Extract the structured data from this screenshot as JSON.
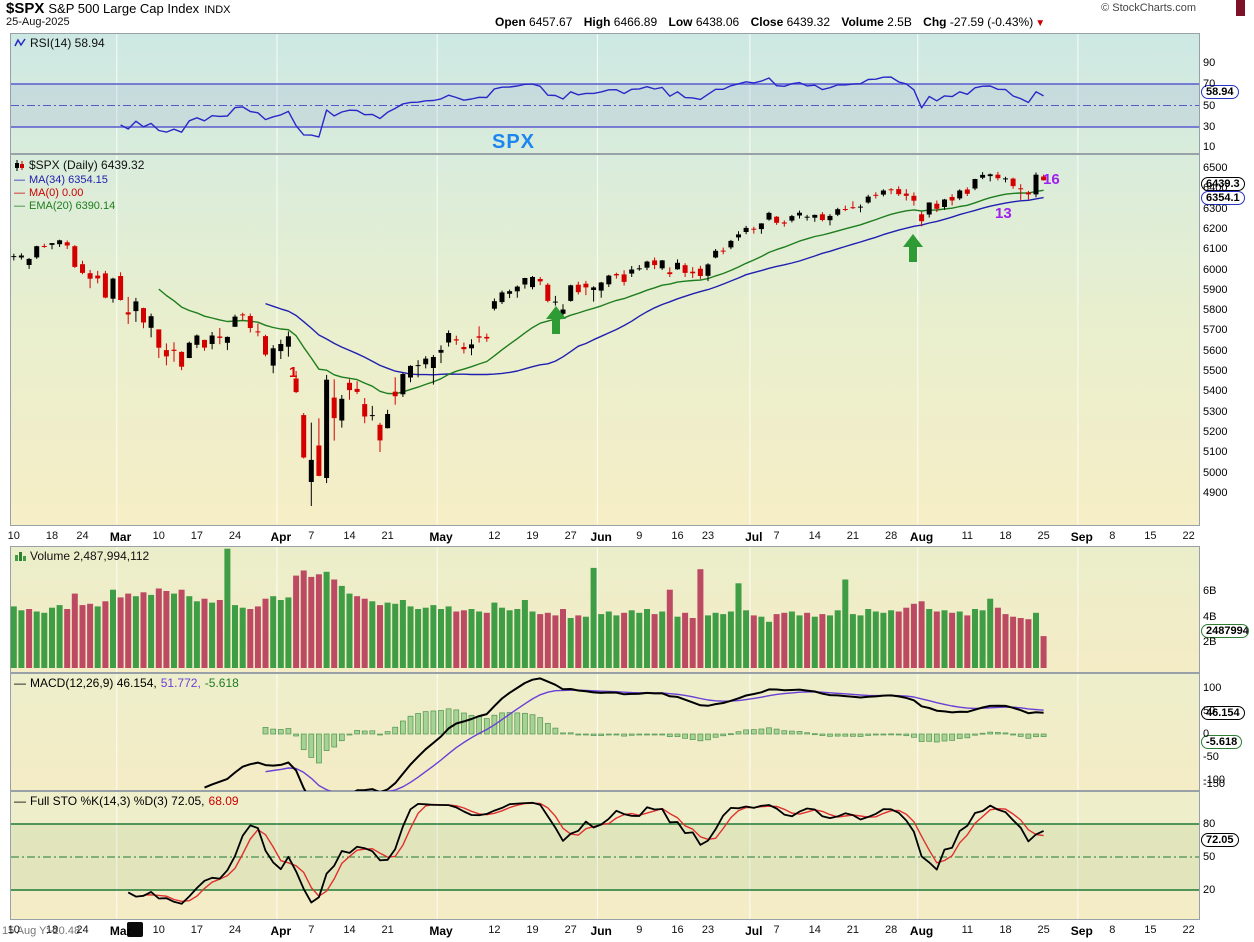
{
  "header": {
    "symbol": "$SPX",
    "name": "S&P 500 Large Cap Index",
    "exchange": "INDX",
    "credit": "© StockCharts.com",
    "date": "25-Aug-2025",
    "quote": {
      "open_label": "Open",
      "open": "6457.67",
      "high_label": "High",
      "high": "6466.89",
      "low_label": "Low",
      "low": "6438.06",
      "close_label": "Close",
      "close": "6439.32",
      "volume_label": "Volume",
      "volume": "2.5B",
      "chg_label": "Chg",
      "chg": "-27.59 (-0.43%)"
    }
  },
  "ui": {
    "dash": "—",
    "triangle_down": "▼"
  },
  "panels": {
    "rsi": {
      "legend": "RSI(14) 58.94",
      "badge": "58.94",
      "y_labels": [
        90,
        70,
        50,
        30,
        10
      ]
    },
    "price": {
      "legend_main": "$SPX (Daily) 6439.32",
      "legend_ma34": "MA(34) 6354.15",
      "legend_ma0": "MA(0) 0.00",
      "legend_ema20": "EMA(20) 6390.14",
      "badge_close": "6439.3",
      "badge_ma": "6354.1",
      "y_max": 6500,
      "y_min": 4900,
      "y_step": 100
    },
    "volume": {
      "legend": "Volume 2,487,994,112",
      "badge": "2487994112",
      "y_labels": [
        {
          "t": "6B",
          "v": 6
        },
        {
          "t": "4B",
          "v": 4
        },
        {
          "t": "2B",
          "v": 2
        }
      ]
    },
    "macd": {
      "legend_main": "MACD(12,26,9) 46.154,",
      "legend_signal": "51.772,",
      "legend_hist": "-5.618",
      "badge_macd": "46.154",
      "badge_hist": "-5.618",
      "y_labels": [
        100,
        50,
        0,
        -50,
        -100,
        -150
      ]
    },
    "sto": {
      "legend_main": "Full STO %K(14,3) %D(3) 72.05,",
      "legend_d": "68.09",
      "badge": "72.05",
      "y_labels": [
        80,
        50,
        20
      ]
    }
  },
  "annotations": {
    "spx": "SPX",
    "count_16": "16",
    "count_13": "13",
    "mark_1": "1",
    "readout": "15 Aug Y:-20.48"
  },
  "chart_data": {
    "type": "candlestick",
    "title": "$SPX Daily with RSI(14), Volume, MACD(12,26,9), Full Stochastics(14,3,3)",
    "price_ylim": [
      4900,
      6500
    ],
    "x_axis": {
      "total_slots": 156,
      "month_gridlines": [
        14,
        35,
        56,
        77,
        97,
        119,
        140
      ],
      "labels": [
        {
          "t": "10",
          "i": 0
        },
        {
          "t": "18",
          "i": 5
        },
        {
          "t": "24",
          "i": 9
        },
        {
          "t": "Mar",
          "i": 14,
          "b": 1
        },
        {
          "t": "10",
          "i": 19
        },
        {
          "t": "17",
          "i": 24
        },
        {
          "t": "24",
          "i": 29
        },
        {
          "t": "Apr",
          "i": 35,
          "b": 1
        },
        {
          "t": "7",
          "i": 39
        },
        {
          "t": "14",
          "i": 44
        },
        {
          "t": "21",
          "i": 49
        },
        {
          "t": "May",
          "i": 56,
          "b": 1
        },
        {
          "t": "12",
          "i": 63
        },
        {
          "t": "19",
          "i": 68
        },
        {
          "t": "27",
          "i": 73
        },
        {
          "t": "Jun",
          "i": 77,
          "b": 1
        },
        {
          "t": "9",
          "i": 82
        },
        {
          "t": "16",
          "i": 87
        },
        {
          "t": "23",
          "i": 91
        },
        {
          "t": "Jul",
          "i": 97,
          "b": 1
        },
        {
          "t": "7",
          "i": 100
        },
        {
          "t": "14",
          "i": 105
        },
        {
          "t": "21",
          "i": 110
        },
        {
          "t": "28",
          "i": 115
        },
        {
          "t": "Aug",
          "i": 119,
          "b": 1
        },
        {
          "t": "11",
          "i": 125
        },
        {
          "t": "18",
          "i": 130
        },
        {
          "t": "25",
          "i": 135
        },
        {
          "t": "Sep",
          "i": 140,
          "b": 1
        },
        {
          "t": "8",
          "i": 144
        },
        {
          "t": "15",
          "i": 149
        },
        {
          "t": "22",
          "i": 154
        }
      ]
    },
    "candles": [
      [
        6062,
        6078,
        6045,
        6066
      ],
      [
        6059,
        6080,
        6049,
        6069
      ],
      [
        6022,
        6056,
        6003,
        6052
      ],
      [
        6060,
        6117,
        6052,
        6115
      ],
      [
        6116,
        6127,
        6107,
        6115
      ],
      [
        6121,
        6130,
        6100,
        6130
      ],
      [
        6125,
        6147,
        6111,
        6144
      ],
      [
        6134,
        6143,
        6101,
        6118
      ],
      [
        6115,
        6120,
        6008,
        6013
      ],
      [
        6026,
        6043,
        5977,
        5983
      ],
      [
        5982,
        5998,
        5908,
        5955
      ],
      [
        5970,
        5993,
        5932,
        5956
      ],
      [
        5981,
        5993,
        5858,
        5862
      ],
      [
        5856,
        5959,
        5837,
        5955
      ],
      [
        5968,
        5986,
        5847,
        5850
      ],
      [
        5789,
        5865,
        5732,
        5778
      ],
      [
        5795,
        5860,
        5742,
        5843
      ],
      [
        5810,
        5812,
        5711,
        5739
      ],
      [
        5713,
        5783,
        5666,
        5770
      ],
      [
        5705,
        5705,
        5564,
        5615
      ],
      [
        5603,
        5636,
        5528,
        5572
      ],
      [
        5605,
        5642,
        5546,
        5599
      ],
      [
        5594,
        5597,
        5504,
        5521
      ],
      [
        5564,
        5645,
        5563,
        5639
      ],
      [
        5629,
        5680,
        5613,
        5675
      ],
      [
        5653,
        5654,
        5600,
        5615
      ],
      [
        5633,
        5692,
        5607,
        5675
      ],
      [
        5670,
        5712,
        5632,
        5663
      ],
      [
        5639,
        5670,
        5603,
        5668
      ],
      [
        5718,
        5778,
        5718,
        5768
      ],
      [
        5779,
        5787,
        5748,
        5777
      ],
      [
        5771,
        5783,
        5690,
        5712
      ],
      [
        5695,
        5734,
        5671,
        5693
      ],
      [
        5672,
        5679,
        5572,
        5581
      ],
      [
        5527,
        5627,
        5489,
        5612
      ],
      [
        5598,
        5654,
        5559,
        5633
      ],
      [
        5620,
        5695,
        5571,
        5671
      ],
      [
        5463,
        5500,
        5391,
        5396
      ],
      [
        5283,
        5293,
        5069,
        5074
      ],
      [
        4953,
        5246,
        4835,
        5062
      ],
      [
        5133,
        5267,
        4982,
        4983
      ],
      [
        4973,
        5481,
        4948,
        5457
      ],
      [
        5369,
        5459,
        5157,
        5268
      ],
      [
        5256,
        5382,
        5221,
        5363
      ],
      [
        5442,
        5459,
        5358,
        5406
      ],
      [
        5412,
        5450,
        5386,
        5397
      ],
      [
        5337,
        5367,
        5243,
        5276
      ],
      [
        5283,
        5328,
        5256,
        5283
      ],
      [
        5235,
        5245,
        5101,
        5158
      ],
      [
        5218,
        5309,
        5217,
        5288
      ],
      [
        5398,
        5469,
        5334,
        5376
      ],
      [
        5385,
        5491,
        5372,
        5485
      ],
      [
        5468,
        5528,
        5445,
        5525
      ],
      [
        5529,
        5553,
        5469,
        5529
      ],
      [
        5533,
        5573,
        5513,
        5561
      ],
      [
        5515,
        5579,
        5433,
        5569
      ],
      [
        5590,
        5626,
        5539,
        5604
      ],
      [
        5640,
        5700,
        5620,
        5687
      ],
      [
        5656,
        5674,
        5629,
        5650
      ],
      [
        5618,
        5640,
        5586,
        5607
      ],
      [
        5612,
        5656,
        5578,
        5631
      ],
      [
        5671,
        5720,
        5640,
        5664
      ],
      [
        5668,
        5684,
        5644,
        5660
      ],
      [
        5807,
        5857,
        5798,
        5844
      ],
      [
        5839,
        5896,
        5830,
        5887
      ],
      [
        5880,
        5901,
        5859,
        5893
      ],
      [
        5893,
        5921,
        5861,
        5916
      ],
      [
        5926,
        5959,
        5906,
        5958
      ],
      [
        5913,
        5968,
        5902,
        5963
      ],
      [
        5953,
        5963,
        5923,
        5941
      ],
      [
        5925,
        5934,
        5838,
        5845
      ],
      [
        5842,
        5870,
        5822,
        5842
      ],
      [
        5782,
        5829,
        5768,
        5803
      ],
      [
        5845,
        5925,
        5842,
        5922
      ],
      [
        5925,
        5940,
        5877,
        5888
      ],
      [
        5930,
        5944,
        5874,
        5912
      ],
      [
        5899,
        5917,
        5842,
        5912
      ],
      [
        5896,
        5939,
        5861,
        5936
      ],
      [
        5927,
        5974,
        5914,
        5970
      ],
      [
        5978,
        5984,
        5955,
        5971
      ],
      [
        5976,
        5996,
        5921,
        5939
      ],
      [
        5980,
        6017,
        5963,
        6000
      ],
      [
        6001,
        6022,
        5994,
        6006
      ],
      [
        6009,
        6043,
        5997,
        6039
      ],
      [
        6045,
        6059,
        6002,
        6022
      ],
      [
        6006,
        6047,
        5998,
        6045
      ],
      [
        5986,
        6011,
        5963,
        5977
      ],
      [
        6001,
        6050,
        5999,
        6033
      ],
      [
        6021,
        6031,
        5963,
        5983
      ],
      [
        5989,
        6012,
        5958,
        5981
      ],
      [
        6004,
        6018,
        5952,
        5968
      ],
      [
        5969,
        6031,
        5943,
        6025
      ],
      [
        6059,
        6101,
        6055,
        6092
      ],
      [
        6093,
        6108,
        6075,
        6092
      ],
      [
        6109,
        6146,
        6100,
        6141
      ],
      [
        6158,
        6188,
        6142,
        6173
      ],
      [
        6185,
        6215,
        6174,
        6205
      ],
      [
        6201,
        6211,
        6177,
        6198
      ],
      [
        6199,
        6228,
        6176,
        6227
      ],
      [
        6246,
        6284,
        6241,
        6279
      ],
      [
        6260,
        6263,
        6220,
        6230
      ],
      [
        6232,
        6242,
        6211,
        6226
      ],
      [
        6241,
        6269,
        6232,
        6263
      ],
      [
        6266,
        6290,
        6251,
        6280
      ],
      [
        6255,
        6269,
        6241,
        6260
      ],
      [
        6255,
        6271,
        6235,
        6269
      ],
      [
        6272,
        6283,
        6237,
        6244
      ],
      [
        6243,
        6273,
        6217,
        6264
      ],
      [
        6270,
        6304,
        6263,
        6297
      ],
      [
        6298,
        6315,
        6287,
        6297
      ],
      [
        6307,
        6336,
        6298,
        6306
      ],
      [
        6310,
        6320,
        6282,
        6310
      ],
      [
        6330,
        6368,
        6324,
        6359
      ],
      [
        6368,
        6381,
        6350,
        6363
      ],
      [
        6369,
        6395,
        6360,
        6389
      ],
      [
        6395,
        6401,
        6371,
        6390
      ],
      [
        6396,
        6410,
        6362,
        6371
      ],
      [
        6374,
        6396,
        6340,
        6363
      ],
      [
        6363,
        6380,
        6315,
        6339
      ],
      [
        6272,
        6285,
        6213,
        6238
      ],
      [
        6271,
        6331,
        6256,
        6330
      ],
      [
        6324,
        6340,
        6283,
        6299
      ],
      [
        6308,
        6348,
        6294,
        6345
      ],
      [
        6357,
        6371,
        6316,
        6340
      ],
      [
        6350,
        6395,
        6342,
        6389
      ],
      [
        6394,
        6405,
        6362,
        6373
      ],
      [
        6399,
        6447,
        6391,
        6446
      ],
      [
        6452,
        6480,
        6445,
        6466
      ],
      [
        6460,
        6473,
        6434,
        6469
      ],
      [
        6467,
        6481,
        6439,
        6450
      ],
      [
        6445,
        6457,
        6429,
        6449
      ],
      [
        6448,
        6452,
        6398,
        6411
      ],
      [
        6400,
        6420,
        6343,
        6395
      ],
      [
        6380,
        6387,
        6344,
        6370
      ],
      [
        6370,
        6478,
        6355,
        6467
      ],
      [
        6458,
        6467,
        6438,
        6439.32
      ]
    ],
    "volume_billions": [
      4.8,
      4.5,
      4.6,
      4.4,
      4.3,
      4.7,
      4.9,
      4.6,
      5.8,
      4.9,
      5.0,
      4.8,
      5.2,
      6.1,
      5.5,
      5.8,
      5.6,
      5.9,
      5.7,
      6.2,
      6.0,
      5.8,
      6.1,
      5.6,
      5.2,
      5.4,
      5.1,
      5.3,
      9.3,
      4.9,
      4.7,
      4.6,
      4.8,
      5.4,
      5.6,
      5.3,
      5.5,
      7.2,
      7.6,
      7.1,
      7.3,
      7.5,
      6.9,
      6.4,
      5.8,
      5.6,
      5.4,
      5.2,
      4.9,
      5.1,
      5.0,
      5.3,
      4.8,
      4.6,
      4.7,
      4.9,
      4.6,
      4.8,
      4.4,
      4.5,
      4.6,
      4.4,
      4.3,
      5.1,
      4.7,
      4.5,
      4.6,
      5.3,
      4.4,
      4.2,
      4.3,
      4.1,
      4.6,
      3.9,
      4.1,
      4.0,
      7.8,
      4.2,
      4.4,
      4.1,
      4.3,
      4.5,
      4.3,
      4.6,
      4.2,
      4.4,
      6.1,
      4.0,
      4.3,
      3.9,
      7.7,
      4.1,
      4.3,
      4.2,
      4.4,
      6.6,
      4.5,
      4.1,
      4.0,
      3.6,
      4.2,
      4.3,
      4.4,
      4.1,
      4.3,
      4.0,
      4.2,
      4.1,
      4.5,
      6.9,
      4.2,
      4.1,
      4.6,
      4.4,
      4.3,
      4.5,
      4.4,
      4.7,
      5.0,
      5.2,
      4.6,
      4.4,
      4.5,
      4.3,
      4.4,
      4.1,
      4.6,
      4.5,
      5.4,
      4.7,
      4.2,
      4.0,
      3.9,
      3.8,
      4.3,
      2.488
    ],
    "indicator_values": {
      "rsi": 58.94,
      "ma34": 6354.15,
      "ma0": 0.0,
      "ema20": 6390.14,
      "macd": 46.154,
      "macd_signal": 51.772,
      "macd_hist": -5.618,
      "sto_k": 72.05,
      "sto_d": 68.09
    }
  }
}
